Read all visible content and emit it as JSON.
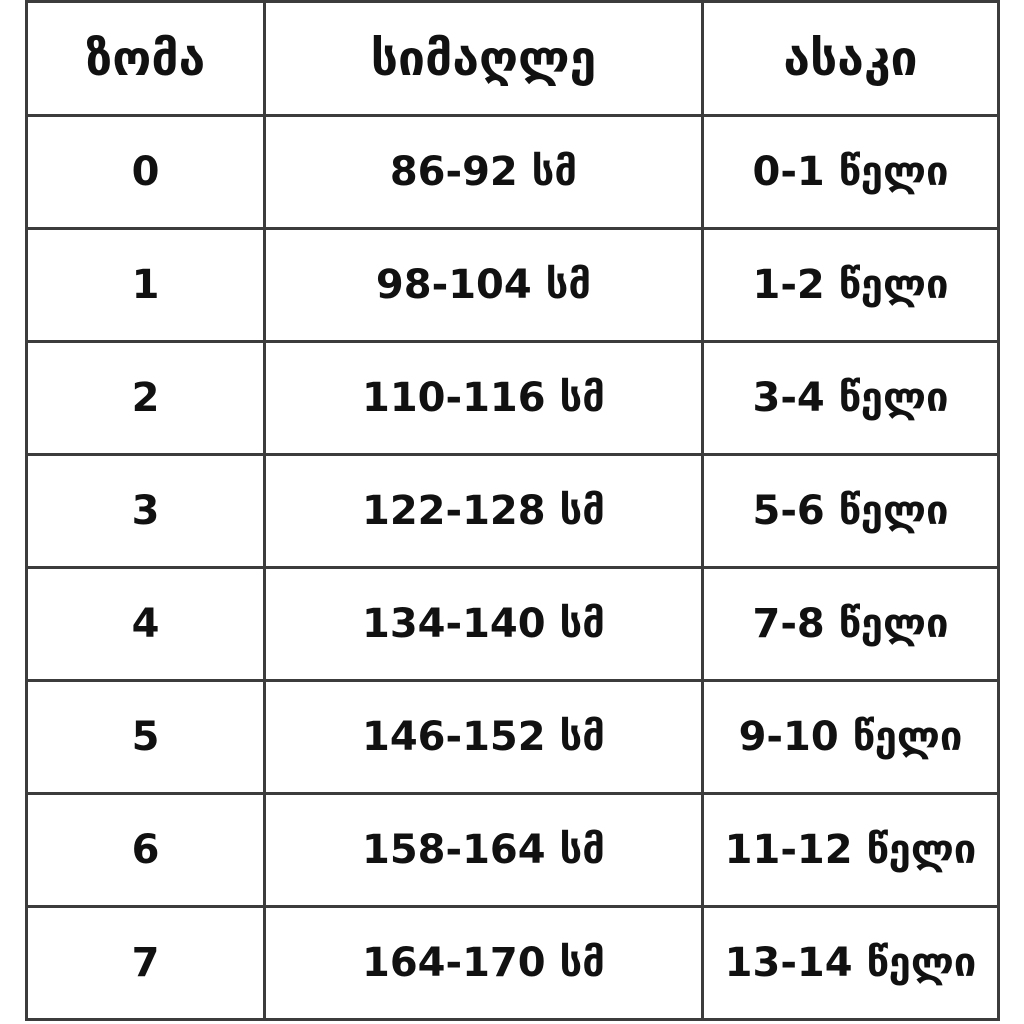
{
  "chart_data": {
    "type": "table",
    "columns": [
      "ზომა",
      "სიმაღლე",
      "ასაკი"
    ],
    "rows": [
      [
        "0",
        "86-92 სმ",
        "0-1 წელი"
      ],
      [
        "1",
        "98-104 სმ",
        "1-2 წელი"
      ],
      [
        "2",
        "110-116 სმ",
        "3-4 წელი"
      ],
      [
        "3",
        "122-128 სმ",
        "5-6 წელი"
      ],
      [
        "4",
        "134-140 სმ",
        "7-8 წელი"
      ],
      [
        "5",
        "146-152 სმ",
        "9-10 წელი"
      ],
      [
        "6",
        "158-164 სმ",
        "11-12 წელი"
      ],
      [
        "7",
        "164-170 სმ",
        "13-14 წელი"
      ]
    ],
    "layout": {
      "grid": "on",
      "border_color": "#3c3c3c",
      "text_color": "#111111",
      "background_color": "#ffffff"
    }
  }
}
